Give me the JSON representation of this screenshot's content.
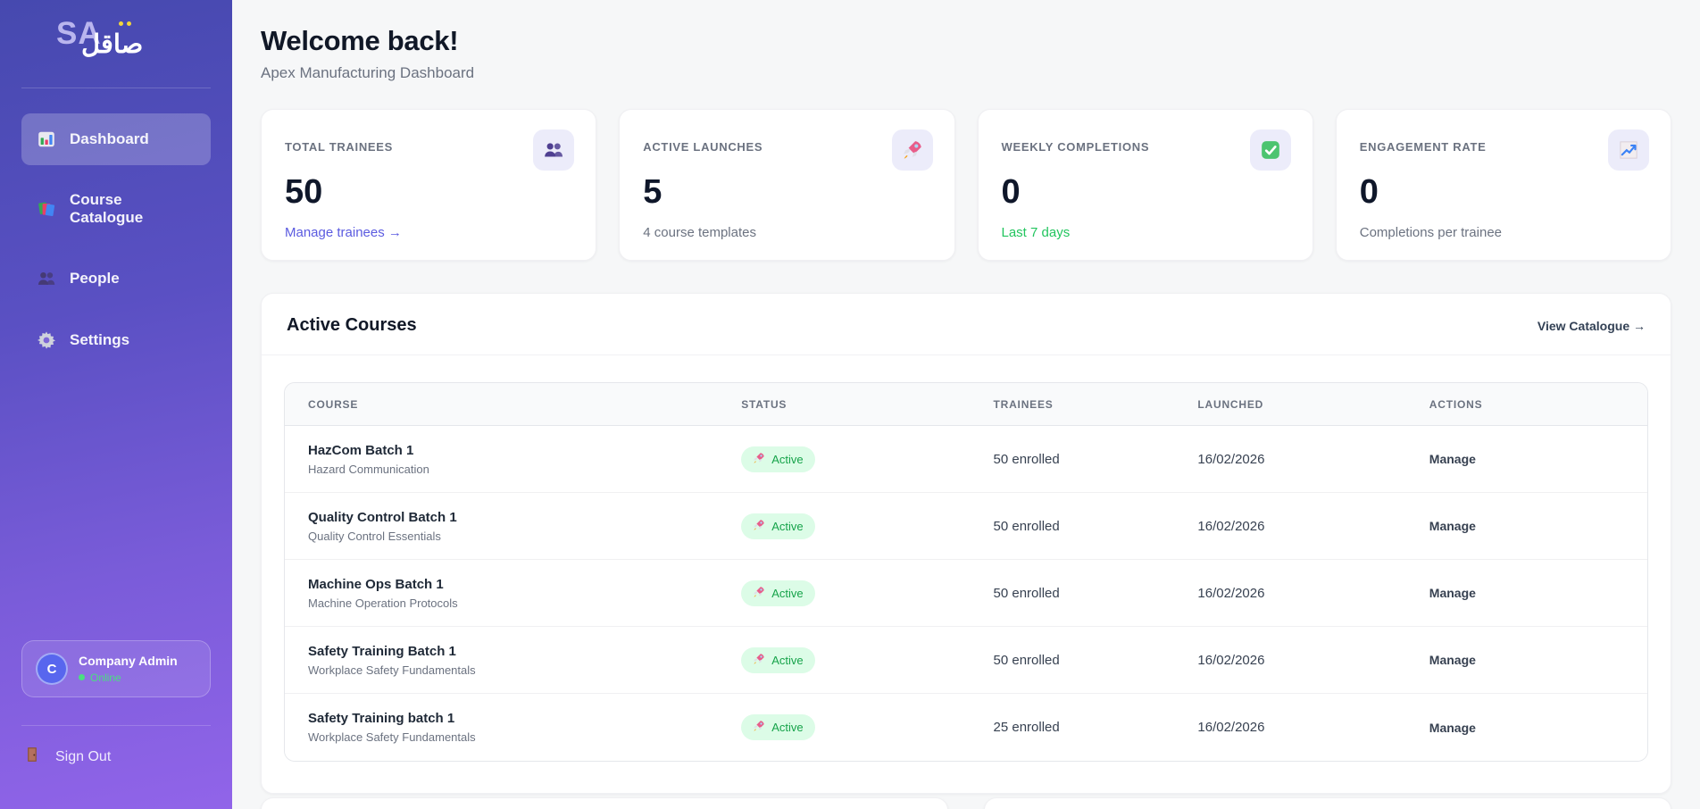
{
  "sidebar": {
    "logo": {
      "latin": "SA",
      "arabic": "صاقل"
    },
    "nav": [
      {
        "label": "Dashboard",
        "icon": "bar-chart-icon",
        "state": "active"
      },
      {
        "label": "Course Catalogue",
        "icon": "books-icon",
        "state": ""
      },
      {
        "label": "People",
        "icon": "people-icon",
        "state": ""
      },
      {
        "label": "Settings",
        "icon": "gear-icon",
        "state": ""
      }
    ],
    "user": {
      "initial": "C",
      "name": "Company Admin",
      "status": "Online"
    },
    "sign_out_label": "Sign Out"
  },
  "header": {
    "title": "Welcome back!",
    "subtitle": "Apex Manufacturing Dashboard"
  },
  "stats": [
    {
      "label": "TOTAL TRAINEES",
      "value": "50",
      "footer": "Manage trainees →",
      "footer_class": "footer-link",
      "icon": "users-icon"
    },
    {
      "label": "ACTIVE LAUNCHES",
      "value": "5",
      "footer": "4 course templates",
      "footer_class": "footer-muted",
      "icon": "rocket-icon"
    },
    {
      "label": "WEEKLY COMPLETIONS",
      "value": "0",
      "footer": "Last 7 days",
      "footer_class": "footer-green",
      "icon": "check-icon"
    },
    {
      "label": "ENGAGEMENT RATE",
      "value": "0",
      "footer": "Completions per trainee",
      "footer_class": "footer-muted",
      "icon": "chart-up-icon"
    }
  ],
  "courses": {
    "title": "Active Courses",
    "view_catalogue_label": "View Catalogue →",
    "columns": [
      "COURSE",
      "STATUS",
      "TRAINEES",
      "LAUNCHED",
      "ACTIONS"
    ],
    "rows": [
      {
        "name": "HazCom Batch 1",
        "template": "Hazard Communication",
        "status": "Active",
        "trainees": "50 enrolled",
        "launched": "16/02/2026",
        "action": "Manage"
      },
      {
        "name": "Quality Control Batch 1",
        "template": "Quality Control Essentials",
        "status": "Active",
        "trainees": "50 enrolled",
        "launched": "16/02/2026",
        "action": "Manage"
      },
      {
        "name": "Machine Ops Batch 1",
        "template": "Machine Operation Protocols",
        "status": "Active",
        "trainees": "50 enrolled",
        "launched": "16/02/2026",
        "action": "Manage"
      },
      {
        "name": "Safety Training Batch 1",
        "template": "Workplace Safety Fundamentals",
        "status": "Active",
        "trainees": "50 enrolled",
        "launched": "16/02/2026",
        "action": "Manage"
      },
      {
        "name": "Safety Training batch 1",
        "template": "Workplace Safety Fundamentals",
        "status": "Active",
        "trainees": "25 enrolled",
        "launched": "16/02/2026",
        "action": "Manage"
      }
    ]
  },
  "colors": {
    "sidebar_gradient_top": "#4649af",
    "sidebar_gradient_bottom": "#9164e9",
    "accent_indigo": "#5b5be0",
    "badge_bg": "#dcfce7",
    "badge_text": "#16a34a",
    "online_green": "#4ade80",
    "footer_green": "#22c55e"
  }
}
